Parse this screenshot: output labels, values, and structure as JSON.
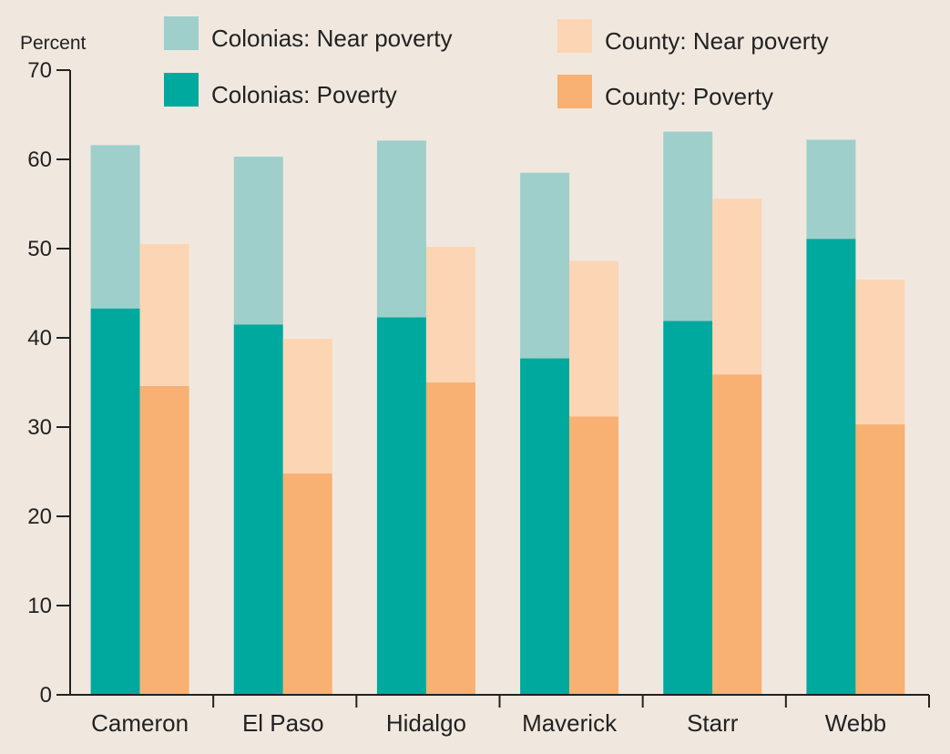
{
  "chart_data": {
    "type": "bar",
    "subtype": "grouped-stacked",
    "ylabel": "Percent",
    "ylim": [
      0,
      70
    ],
    "yticks": [
      0,
      10,
      20,
      30,
      40,
      50,
      60,
      70
    ],
    "categories": [
      "Cameron",
      "El Paso",
      "Hidalgo",
      "Maverick",
      "Starr",
      "Webb"
    ],
    "legend": [
      {
        "key": "colonias_near",
        "label": "Colonias: Near poverty",
        "color": "#9ecfca"
      },
      {
        "key": "county_near",
        "label": "County: Near poverty",
        "color": "#fcd5b4"
      },
      {
        "key": "colonias_pov",
        "label": "Colonias: Poverty",
        "color": "#00a99d"
      },
      {
        "key": "county_pov",
        "label": "County: Poverty",
        "color": "#f8b073"
      }
    ],
    "groups": [
      {
        "name": "Colonias",
        "series": [
          {
            "name": "Colonias: Poverty",
            "color": "#00a99d",
            "values": [
              43.3,
              41.5,
              42.3,
              37.7,
              41.9,
              51.1
            ]
          },
          {
            "name": "Colonias: Near poverty",
            "color": "#9ecfca",
            "values": [
              18.3,
              18.8,
              19.8,
              20.8,
              21.2,
              11.1
            ]
          }
        ]
      },
      {
        "name": "County",
        "series": [
          {
            "name": "County: Poverty",
            "color": "#f8b073",
            "values": [
              34.6,
              24.8,
              35.0,
              31.2,
              35.9,
              30.3
            ]
          },
          {
            "name": "County: Near poverty",
            "color": "#fcd5b4",
            "values": [
              15.9,
              15.1,
              15.2,
              17.4,
              19.7,
              16.2
            ]
          }
        ]
      }
    ],
    "grid": false
  }
}
